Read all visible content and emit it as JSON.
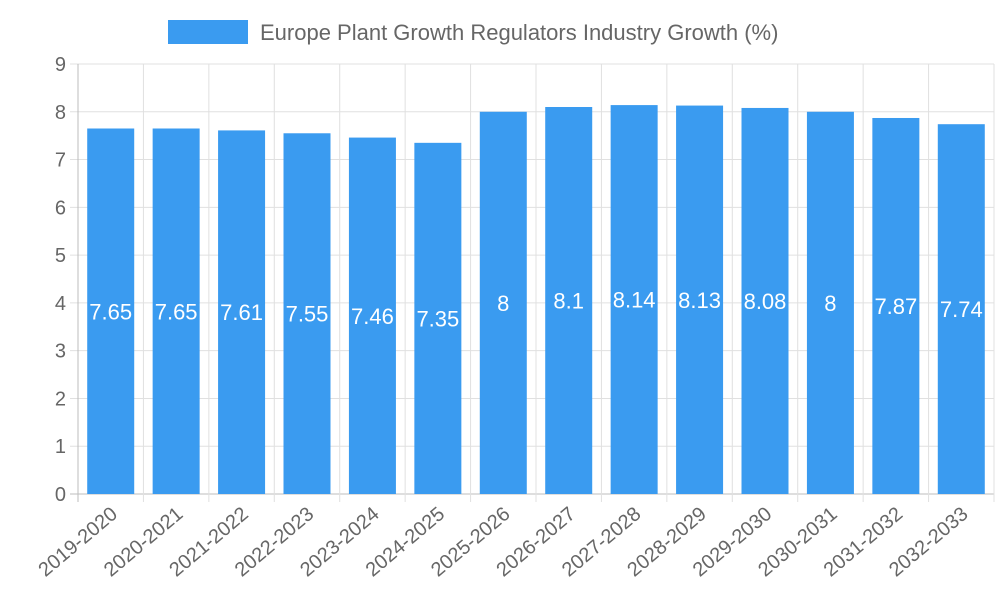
{
  "chart_data": {
    "type": "bar",
    "title": "",
    "legend": {
      "label": "Europe Plant Growth Regulators Industry Growth (%)",
      "placement": "top-center"
    },
    "categories": [
      "2019-2020",
      "2020-2021",
      "2021-2022",
      "2022-2023",
      "2023-2024",
      "2024-2025",
      "2025-2026",
      "2026-2027",
      "2027-2028",
      "2028-2029",
      "2029-2030",
      "2030-2031",
      "2031-2032",
      "2032-2033"
    ],
    "values": [
      7.65,
      7.65,
      7.61,
      7.55,
      7.46,
      7.35,
      8,
      8.1,
      8.14,
      8.13,
      8.08,
      8,
      7.87,
      7.74
    ],
    "data_labels": [
      "7.65",
      "7.65",
      "7.61",
      "7.55",
      "7.46",
      "7.35",
      "8",
      "8.1",
      "8.14",
      "8.13",
      "8.08",
      "8",
      "7.87",
      "7.74"
    ],
    "yticks": [
      "0",
      "1",
      "2",
      "3",
      "4",
      "5",
      "6",
      "7",
      "8",
      "9"
    ],
    "ylim": [
      0,
      9
    ],
    "xlabel": "",
    "ylabel": "",
    "grid": true,
    "colors": {
      "bar": "#3a9bf0",
      "grid": "#e0e0e0",
      "axis": "#bdbdbd",
      "text": "#666666",
      "label": "#ffffff"
    }
  }
}
